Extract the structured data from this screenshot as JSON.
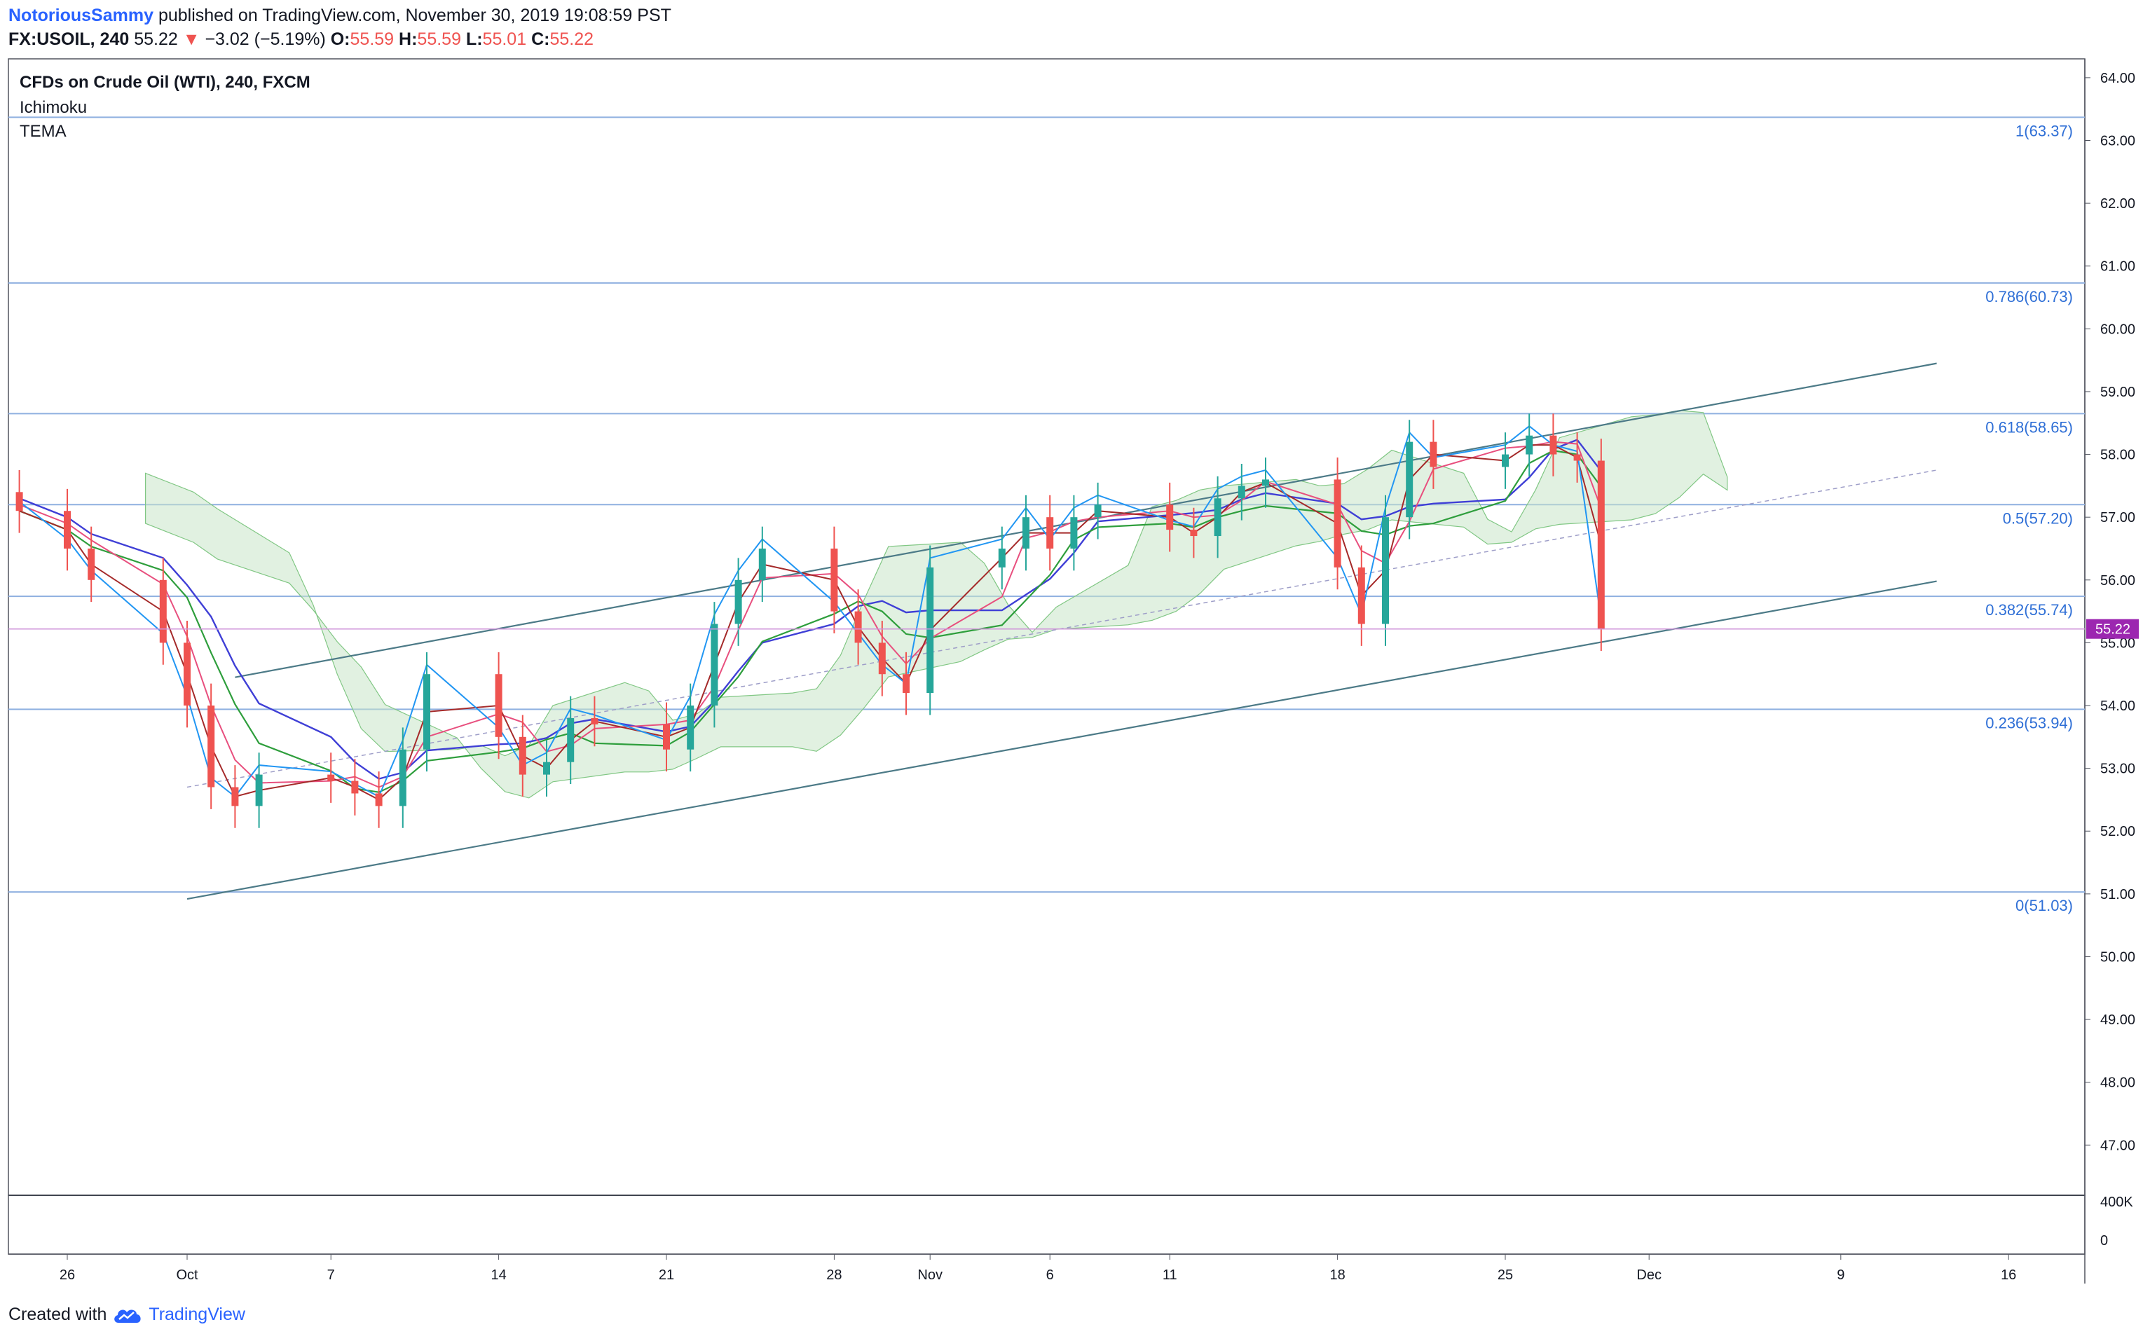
{
  "header": {
    "author": "NotoriousSammy",
    "published": "published on TradingView.com, November 30, 2019 19:08:59 PST",
    "symbol": "FX:USOIL, 240",
    "last": "55.22",
    "change_arrow": "▼",
    "change": "−3.02 (−5.19%)",
    "o_label": "O:",
    "o": "55.59",
    "h_label": "H:",
    "h": "55.59",
    "l_label": "L:",
    "l": "55.01",
    "c_label": "C:",
    "c": "55.22"
  },
  "legend": {
    "title": "CFDs on Crude Oil (WTI), 240, FXCM",
    "ind1": "Ichimoku",
    "ind2": "TEMA"
  },
  "footer": {
    "created": "Created with",
    "brand": "TradingView",
    "logo_icon": "tradingview-cloud-icon"
  },
  "colors": {
    "up": "#26a69a",
    "down": "#ef5350",
    "tenkan": "#2196f3",
    "kijun": "#a52a2a",
    "tema_blue": "#3f3fd6",
    "tema_green": "#2e9e3c",
    "tema_pink": "#e84f7e",
    "fib": "#8fb0e0",
    "channel": "#4c7a87",
    "price_tag": "#9c27b0"
  },
  "chart_data": {
    "type": "candlestick",
    "symbol": "FX:USOIL",
    "interval": "240",
    "ylim": [
      46.2,
      64.3
    ],
    "y_ticks": [
      "47.00",
      "48.00",
      "49.00",
      "50.00",
      "51.00",
      "52.00",
      "53.00",
      "54.00",
      "55.00",
      "56.00",
      "57.00",
      "58.00",
      "59.00",
      "60.00",
      "61.00",
      "62.00",
      "63.00",
      "64.00"
    ],
    "x_ticks": [
      "26",
      "Oct",
      "7",
      "14",
      "21",
      "28",
      "Nov",
      "6",
      "11",
      "18",
      "25",
      "Dec",
      "9",
      "16"
    ],
    "x_tick_dates": [
      "2019-09-26",
      "2019-10-01",
      "2019-10-07",
      "2019-10-14",
      "2019-10-21",
      "2019-10-28",
      "2019-11-01",
      "2019-11-06",
      "2019-11-11",
      "2019-11-18",
      "2019-11-25",
      "2019-12-01",
      "2019-12-09",
      "2019-12-16"
    ],
    "volume_ticks": [
      "400K",
      "0"
    ],
    "fib_levels": [
      {
        "label": "1(63.37)",
        "value": 63.37
      },
      {
        "label": "0.786(60.73)",
        "value": 60.73
      },
      {
        "label": "0.618(58.65)",
        "value": 58.65
      },
      {
        "label": "0.5(57.20)",
        "value": 57.2
      },
      {
        "label": "0.382(55.74)",
        "value": 55.74
      },
      {
        "label": "0.236(53.94)",
        "value": 53.94
      },
      {
        "label": "0(51.03)",
        "value": 51.03
      }
    ],
    "last_price": {
      "label": "55.22",
      "value": 55.22
    },
    "channel_lines": [
      {
        "name": "upper",
        "from": [
          "2019-10-03",
          54.45
        ],
        "to": [
          "2019-12-13",
          59.45
        ]
      },
      {
        "name": "lower",
        "from": [
          "2019-10-01",
          50.92
        ],
        "to": [
          "2019-12-13",
          55.98
        ]
      },
      {
        "name": "mid",
        "dashed": true,
        "from": [
          "2019-10-01",
          52.7
        ],
        "to": [
          "2019-12-13",
          57.75
        ]
      }
    ],
    "series": [
      {
        "name": "Close",
        "values": [
          [
            "2019-09-24",
            57.1
          ],
          [
            "2019-09-26",
            56.5
          ],
          [
            "2019-09-27",
            56.0
          ],
          [
            "2019-09-30",
            55.0
          ],
          [
            "2019-10-01",
            54.0
          ],
          [
            "2019-10-02",
            52.7
          ],
          [
            "2019-10-03",
            52.4
          ],
          [
            "2019-10-04",
            52.9
          ],
          [
            "2019-10-07",
            52.8
          ],
          [
            "2019-10-08",
            52.6
          ],
          [
            "2019-10-09",
            52.4
          ],
          [
            "2019-10-10",
            53.3
          ],
          [
            "2019-10-11",
            54.5
          ],
          [
            "2019-10-14",
            53.5
          ],
          [
            "2019-10-15",
            52.9
          ],
          [
            "2019-10-16",
            53.1
          ],
          [
            "2019-10-17",
            53.8
          ],
          [
            "2019-10-18",
            53.7
          ],
          [
            "2019-10-21",
            53.3
          ],
          [
            "2019-10-22",
            54.0
          ],
          [
            "2019-10-23",
            55.3
          ],
          [
            "2019-10-24",
            56.0
          ],
          [
            "2019-10-25",
            56.5
          ],
          [
            "2019-10-28",
            55.5
          ],
          [
            "2019-10-29",
            55.0
          ],
          [
            "2019-10-30",
            54.5
          ],
          [
            "2019-10-31",
            54.2
          ],
          [
            "2019-11-01",
            56.2
          ],
          [
            "2019-11-04",
            56.5
          ],
          [
            "2019-11-05",
            57.0
          ],
          [
            "2019-11-06",
            56.5
          ],
          [
            "2019-11-07",
            57.0
          ],
          [
            "2019-11-08",
            57.2
          ],
          [
            "2019-11-11",
            56.8
          ],
          [
            "2019-11-12",
            56.7
          ],
          [
            "2019-11-13",
            57.3
          ],
          [
            "2019-11-14",
            57.5
          ],
          [
            "2019-11-15",
            57.6
          ],
          [
            "2019-11-18",
            56.2
          ],
          [
            "2019-11-19",
            55.3
          ],
          [
            "2019-11-20",
            57.0
          ],
          [
            "2019-11-21",
            58.2
          ],
          [
            "2019-11-22",
            57.8
          ],
          [
            "2019-11-25",
            58.0
          ],
          [
            "2019-11-26",
            58.3
          ],
          [
            "2019-11-27",
            58.0
          ],
          [
            "2019-11-28",
            57.9
          ],
          [
            "2019-11-29",
            55.22
          ]
        ]
      },
      {
        "name": "Ichimoku",
        "values": []
      },
      {
        "name": "TEMA",
        "values": []
      }
    ]
  }
}
